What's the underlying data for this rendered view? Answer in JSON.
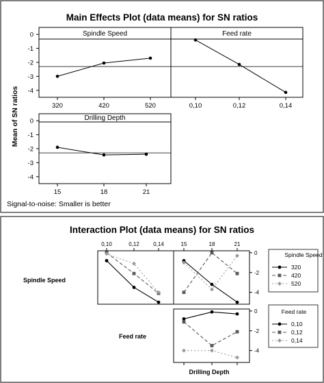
{
  "main_effects": {
    "title": "Main Effects Plot (data means) for SN ratios",
    "ylabel": "Mean of SN ratios",
    "footnote": "Signal-to-noise: Smaller is better",
    "reference_line": -2.3
  },
  "interaction": {
    "title": "Interaction Plot (data means) for SN ratios",
    "row_labels": [
      "Spindle Speed",
      "Feed rate",
      "Drilling Depth"
    ],
    "legends": [
      {
        "title": "Spindle Speed",
        "entries": [
          "320",
          "420",
          "520"
        ]
      },
      {
        "title": "Feed rate",
        "entries": [
          "0,10",
          "0,12",
          "0,14"
        ]
      }
    ]
  },
  "colors": {
    "series1": "#000000",
    "series2": "#595959",
    "series3": "#9a9a9a"
  },
  "chart_data": [
    {
      "type": "line",
      "panel": "Spindle Speed",
      "categories": [
        "320",
        "420",
        "520"
      ],
      "values": [
        -3.0,
        -2.05,
        -1.7
      ],
      "ylim": [
        -4.5,
        0.5
      ],
      "yticks": [
        "0",
        "-1",
        "-2",
        "-3",
        "-4"
      ]
    },
    {
      "type": "line",
      "panel": "Feed rate",
      "categories": [
        "0,10",
        "0,12",
        "0,14"
      ],
      "values": [
        -0.4,
        -2.15,
        -4.15
      ],
      "ylim": [
        -4.5,
        0.5
      ]
    },
    {
      "type": "line",
      "panel": "Drilling Depth",
      "categories": [
        "15",
        "18",
        "21"
      ],
      "values": [
        -1.9,
        -2.45,
        -2.4
      ],
      "ylim": [
        -4.5,
        0.5
      ],
      "yticks": [
        "0",
        "-1",
        "-2",
        "-3",
        "-4"
      ]
    },
    {
      "type": "line",
      "panel": "Spindle Speed x Feed rate",
      "categories": [
        "0,10",
        "0,12",
        "0,14"
      ],
      "series": [
        {
          "name": "320",
          "values": [
            -0.8,
            -3.5,
            -5.0
          ]
        },
        {
          "name": "420",
          "values": [
            0.0,
            -2.1,
            -4.1
          ]
        },
        {
          "name": "520",
          "values": [
            -0.1,
            -1.1,
            -4.0
          ]
        }
      ]
    },
    {
      "type": "line",
      "panel": "Spindle Speed x Drilling Depth",
      "categories": [
        "15",
        "18",
        "21"
      ],
      "series": [
        {
          "name": "320",
          "values": [
            -0.8,
            -3.2,
            -5.0
          ]
        },
        {
          "name": "420",
          "values": [
            -4.0,
            0.0,
            -2.1
          ]
        },
        {
          "name": "520",
          "values": [
            -1.0,
            -3.7,
            -0.3
          ]
        }
      ]
    },
    {
      "type": "line",
      "panel": "Feed rate x Drilling Depth",
      "categories": [
        "15",
        "18",
        "21"
      ],
      "series": [
        {
          "name": "0,10",
          "values": [
            -0.8,
            -0.1,
            -0.3
          ]
        },
        {
          "name": "0,12",
          "values": [
            -1.1,
            -3.5,
            -2.1
          ]
        },
        {
          "name": "0,14",
          "values": [
            -4.0,
            -4.0,
            -4.7
          ]
        }
      ],
      "yticks": [
        "0",
        "-2",
        "-4"
      ]
    }
  ]
}
